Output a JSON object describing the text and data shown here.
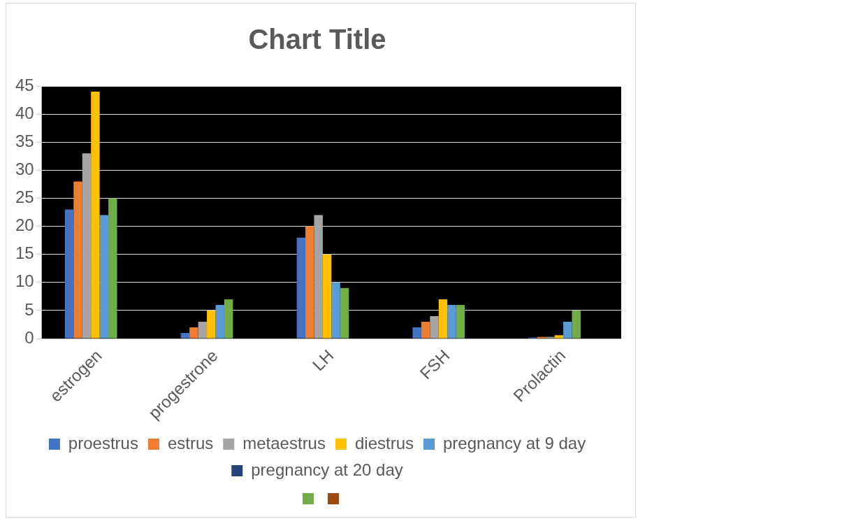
{
  "chart_data": {
    "type": "bar",
    "title": "Chart Title",
    "categories": [
      "estrogen",
      "progestrone",
      "LH",
      "FSH",
      "Prolactin"
    ],
    "series": [
      {
        "name": "proestrus",
        "color": "#4472c4",
        "values": [
          23,
          1,
          18,
          2,
          0.2
        ]
      },
      {
        "name": "estrus",
        "color": "#ed7d31",
        "values": [
          28,
          2,
          20,
          3,
          0.3
        ]
      },
      {
        "name": "metaestrus",
        "color": "#a5a5a5",
        "values": [
          33,
          3,
          22,
          4,
          0.3
        ]
      },
      {
        "name": "diestrus",
        "color": "#ffc000",
        "values": [
          44,
          5,
          15,
          7,
          0.6
        ]
      },
      {
        "name": "pregnancy at 9 day",
        "color": "#5b9bd5",
        "values": [
          22,
          6,
          10,
          6,
          3
        ]
      },
      {
        "color": "#70ad47",
        "values": [
          25,
          7,
          9,
          6,
          5
        ]
      },
      {
        "name": "pregnancy at 20 day",
        "color": "#264478",
        "values": [
          null,
          null,
          null,
          null,
          null
        ]
      },
      {
        "color": "#9e480e",
        "values": [
          null,
          null,
          null,
          null,
          null
        ]
      }
    ],
    "ylim": [
      0,
      45
    ],
    "yticks": [
      0,
      5,
      10,
      15,
      20,
      25,
      30,
      35,
      40,
      45
    ],
    "grid": "y",
    "legend": "bottom"
  }
}
